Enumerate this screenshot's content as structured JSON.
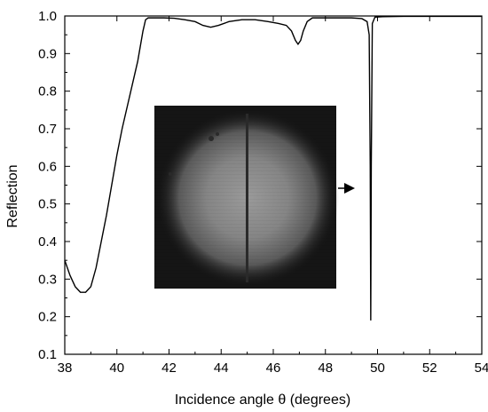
{
  "chart_data": {
    "type": "line",
    "xlabel": "Incidence angle θ (degrees)",
    "ylabel": "Reflection",
    "xlim": [
      38,
      54
    ],
    "ylim": [
      0.1,
      1.0
    ],
    "xticks": [
      "38",
      "40",
      "42",
      "44",
      "46",
      "48",
      "50",
      "52",
      "54"
    ],
    "yticks": [
      "0.1",
      "0.2",
      "0.3",
      "0.4",
      "0.5",
      "0.6",
      "0.7",
      "0.8",
      "0.9",
      "1.0"
    ],
    "grid": false,
    "legend": "none",
    "line_color": "#000000",
    "series": [
      {
        "x": [
          38.0,
          38.2,
          38.4,
          38.6,
          38.8,
          39.0,
          39.2,
          39.4,
          39.6,
          39.8,
          40.0,
          40.2,
          40.4,
          40.6,
          40.8,
          41.0,
          41.1,
          41.2,
          41.4,
          41.8,
          42.2,
          42.6,
          43.0,
          43.3,
          43.6,
          43.9,
          44.3,
          44.8,
          45.3,
          45.8,
          46.2,
          46.5,
          46.7,
          46.85,
          46.95,
          47.05,
          47.15,
          47.3,
          47.5,
          48.0,
          48.5,
          49.0,
          49.4,
          49.6,
          49.68,
          49.72,
          49.74,
          49.76,
          49.8,
          49.9,
          50.2,
          51.0,
          52.0,
          53.0,
          54.0
        ],
        "y": [
          0.35,
          0.31,
          0.28,
          0.265,
          0.265,
          0.28,
          0.33,
          0.4,
          0.47,
          0.55,
          0.63,
          0.7,
          0.76,
          0.82,
          0.88,
          0.96,
          0.99,
          0.995,
          0.995,
          0.995,
          0.994,
          0.99,
          0.985,
          0.975,
          0.97,
          0.975,
          0.985,
          0.99,
          0.99,
          0.985,
          0.98,
          0.975,
          0.96,
          0.935,
          0.925,
          0.935,
          0.96,
          0.985,
          0.995,
          0.995,
          0.995,
          0.995,
          0.993,
          0.985,
          0.95,
          0.6,
          0.19,
          0.6,
          0.98,
          0.997,
          0.998,
          0.999,
          0.999,
          0.999,
          0.999
        ]
      }
    ],
    "inset": {
      "type": "camera-image",
      "arrow_direction": "right"
    }
  }
}
